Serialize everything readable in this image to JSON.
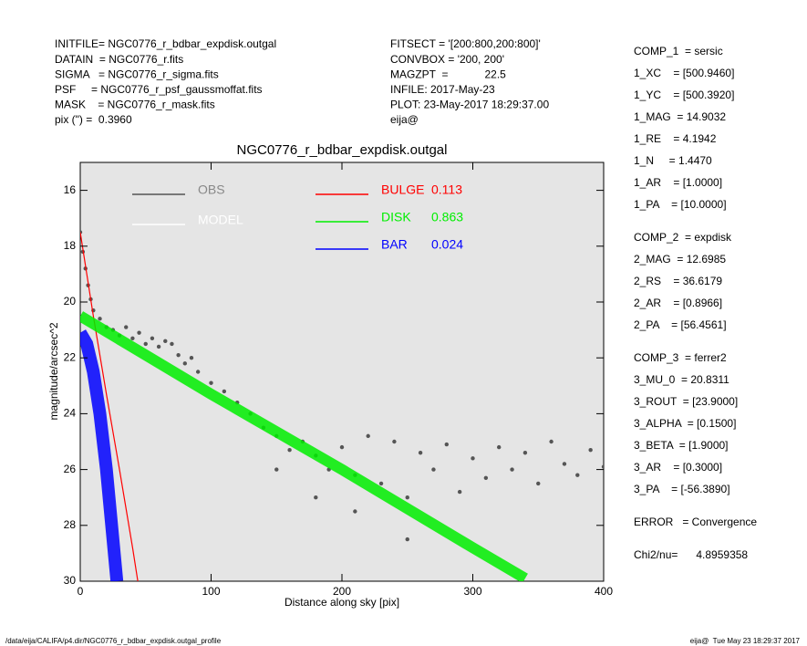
{
  "header": {
    "left": [
      "INITFILE= NGC0776_r_bdbar_expdisk.outgal",
      "DATAIN  = NGC0776_r.fits",
      "SIGMA   = NGC0776_r_sigma.fits",
      "PSF     = NGC0776_r_psf_gaussmoffat.fits",
      "MASK    = NGC0776_r_mask.fits",
      "pix (\") =  0.3960"
    ],
    "middle": [
      "FITSECT = '[200:800,200:800]'",
      "CONVBOX = '200, 200'",
      "MAGZPT  =            22.5",
      "INFILE: 2017-May-23",
      "PLOT: 23-May-2017 18:29:37.00",
      "eija@"
    ],
    "right": [
      [
        "COMP_1  = sersic",
        "1_XC    = [500.9460]",
        "1_YC    = [500.3920]",
        "1_MAG  = 14.9032",
        "1_RE    = 4.1942",
        "1_N     = 1.4470",
        "1_AR    = [1.0000]",
        "1_PA    = [10.0000]"
      ],
      [
        "COMP_2  = expdisk",
        "2_MAG  = 12.6985",
        "2_RS    = 36.6179",
        "2_AR    = [0.8966]",
        "2_PA    = [56.4561]"
      ],
      [
        "COMP_3  = ferrer2",
        "3_MU_0  = 20.8311",
        "3_ROUT  = [23.9000]",
        "3_ALPHA  = [0.1500]",
        "3_BETA  = [1.9000]",
        "3_AR    = [0.3000]",
        "3_PA    = [-56.3890]"
      ],
      [
        "ERROR   = Convergence"
      ],
      [
        "Chi2/nu=      4.8959358"
      ]
    ]
  },
  "footer": {
    "left": "/data/eija/CALIFA/p4.dir/NGC0776_r_bdbar_expdisk.outgal_profile",
    "right": "eija@  Tue May 23 18:29:37 2017"
  },
  "chart_data": {
    "type": "scatter",
    "title": "NGC0776_r_bdbar_expdisk.outgal",
    "xlabel": "Distance along sky [pix]",
    "ylabel": "magnitude/arcsec^2",
    "xlim": [
      0,
      400
    ],
    "xticks": [
      0,
      100,
      200,
      300,
      400
    ],
    "ylim": [
      30,
      15
    ],
    "yticks": [
      16,
      18,
      20,
      22,
      24,
      26,
      28,
      30
    ],
    "background": "#e5e5e5",
    "series": [
      {
        "name": "OBS",
        "color": "#555555",
        "kind": "scatter",
        "x": [
          0,
          2,
          4,
          6,
          8,
          10,
          15,
          20,
          25,
          30,
          35,
          40,
          45,
          50,
          55,
          60,
          65,
          70,
          75,
          80,
          85,
          90,
          100,
          110,
          120,
          130,
          140,
          150,
          160,
          170,
          180,
          190,
          200,
          210,
          220,
          230,
          240,
          250,
          260,
          270,
          280,
          290,
          300,
          310,
          320,
          330,
          340,
          350,
          360,
          370,
          380,
          390,
          400,
          150,
          180,
          210,
          250
        ],
        "values": [
          17.5,
          18.2,
          18.8,
          19.4,
          19.9,
          20.3,
          20.6,
          20.9,
          21.0,
          21.2,
          20.9,
          21.3,
          21.1,
          21.5,
          21.3,
          21.6,
          21.4,
          21.5,
          21.9,
          22.2,
          22.0,
          22.5,
          22.9,
          23.2,
          23.6,
          24.0,
          24.5,
          24.8,
          25.3,
          25.0,
          25.5,
          26.0,
          25.2,
          26.2,
          24.8,
          26.5,
          25.0,
          27.0,
          25.4,
          26.0,
          25.1,
          26.8,
          25.6,
          26.3,
          25.2,
          26.0,
          25.4,
          26.5,
          25.0,
          25.8,
          26.2,
          25.3,
          25.9,
          26.0,
          27.0,
          27.5,
          28.5
        ]
      },
      {
        "name": "MODEL",
        "color": "#ffffff",
        "kind": "legend"
      },
      {
        "name": "BULGE",
        "fraction": 0.113,
        "color": "#ff0000",
        "kind": "line",
        "width": 1.2,
        "x": [
          0,
          5,
          10,
          20,
          30,
          40,
          44
        ],
        "values": [
          17.5,
          19.0,
          20.5,
          23.3,
          26.0,
          28.8,
          30
        ]
      },
      {
        "name": "DISK",
        "fraction": 0.863,
        "color": "#00ee00",
        "kind": "line",
        "width": 12,
        "x": [
          0,
          100,
          200,
          300,
          340
        ],
        "values": [
          20.5,
          23.3,
          26.0,
          28.8,
          29.9
        ]
      },
      {
        "name": "BAR",
        "fraction": 0.024,
        "color": "#0000ff",
        "kind": "line",
        "width": 14,
        "x": [
          0,
          5,
          10,
          15,
          20,
          25,
          28
        ],
        "values": [
          21.1,
          21.5,
          22.5,
          24,
          26,
          28.5,
          30
        ]
      }
    ]
  }
}
